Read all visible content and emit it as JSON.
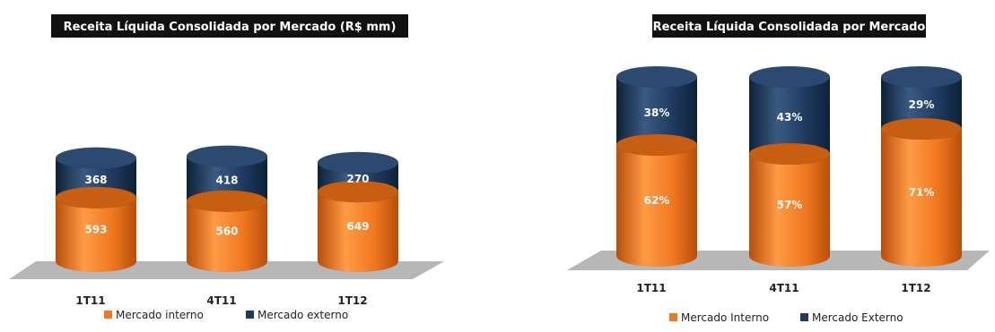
{
  "colors": {
    "interno": "#F07820",
    "externo": "#1F3A5F",
    "floor": "#B7B7B7",
    "title_bg": "#111111",
    "title_fg": "#FFFFFF"
  },
  "chart_data": [
    {
      "type": "bar",
      "stacked": true,
      "title": "Receita Líquida Consolidada por Mercado (R$ mm)",
      "categories": [
        "1T11",
        "4T11",
        "1T12"
      ],
      "series": [
        {
          "name": "Mercado interno",
          "values": [
            593,
            560,
            649
          ],
          "labels": [
            "593",
            "560",
            "649"
          ]
        },
        {
          "name": "Mercado externo",
          "values": [
            368,
            418,
            270
          ],
          "labels": [
            "368",
            "418",
            "270"
          ]
        }
      ],
      "legend_position": "bottom"
    },
    {
      "type": "bar",
      "stacked": true,
      "title": "Receita Líquida Consolidada por Mercado",
      "categories": [
        "1T11",
        "4T11",
        "1T12"
      ],
      "series": [
        {
          "name": "Mercado Interno",
          "values": [
            62,
            57,
            71
          ],
          "labels": [
            "62%",
            "57%",
            "71%"
          ]
        },
        {
          "name": "Mercado Externo",
          "values": [
            38,
            43,
            29
          ],
          "labels": [
            "38%",
            "43%",
            "29%"
          ]
        }
      ],
      "legend_position": "bottom"
    }
  ]
}
